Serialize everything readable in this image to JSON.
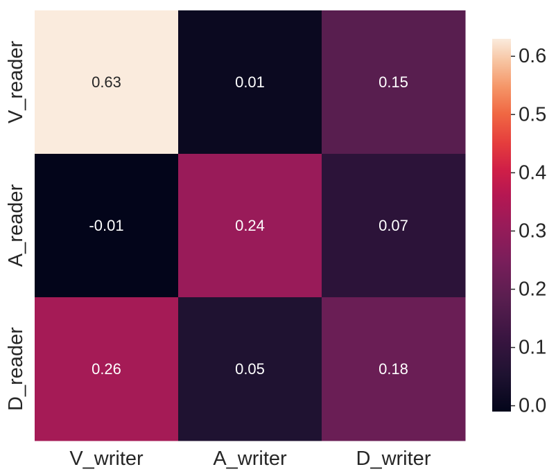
{
  "chart_data": {
    "type": "heatmap",
    "title": "",
    "xlabel": "",
    "ylabel": "",
    "x_categories": [
      "V_writer",
      "A_writer",
      "D_writer"
    ],
    "y_categories": [
      "V_reader",
      "A_reader",
      "D_reader"
    ],
    "values": [
      [
        0.63,
        0.01,
        0.15
      ],
      [
        -0.01,
        0.24,
        0.07
      ],
      [
        0.26,
        0.05,
        0.18
      ]
    ],
    "annotations": [
      [
        "0.63",
        "0.01",
        "0.15"
      ],
      [
        "-0.01",
        "0.24",
        "0.07"
      ],
      [
        "0.26",
        "0.05",
        "0.18"
      ]
    ],
    "colormap": "rocket",
    "vmin": -0.01,
    "vmax": 0.63,
    "colorbar": {
      "ticks": [
        0.0,
        0.1,
        0.2,
        0.3,
        0.4,
        0.5,
        0.6
      ],
      "tick_labels": [
        "0.0",
        "0.1",
        "0.2",
        "0.3",
        "0.4",
        "0.5",
        "0.6"
      ]
    },
    "grid": false,
    "legend": "colorbar-right"
  },
  "colors": {
    "cell_0_0": "#faebdd",
    "cell_0_1": "#0b0920",
    "cell_0_2": "#581e4f",
    "cell_1_0": "#03051a",
    "cell_1_1": "#991b59",
    "cell_1_2": "#2c1339",
    "cell_2_0": "#a51b56",
    "cell_2_1": "#1f1231",
    "cell_2_2": "#6a1e55",
    "annotation_dark": "#262626",
    "annotation_light": "#ffffff",
    "tick_text": "#262626"
  }
}
